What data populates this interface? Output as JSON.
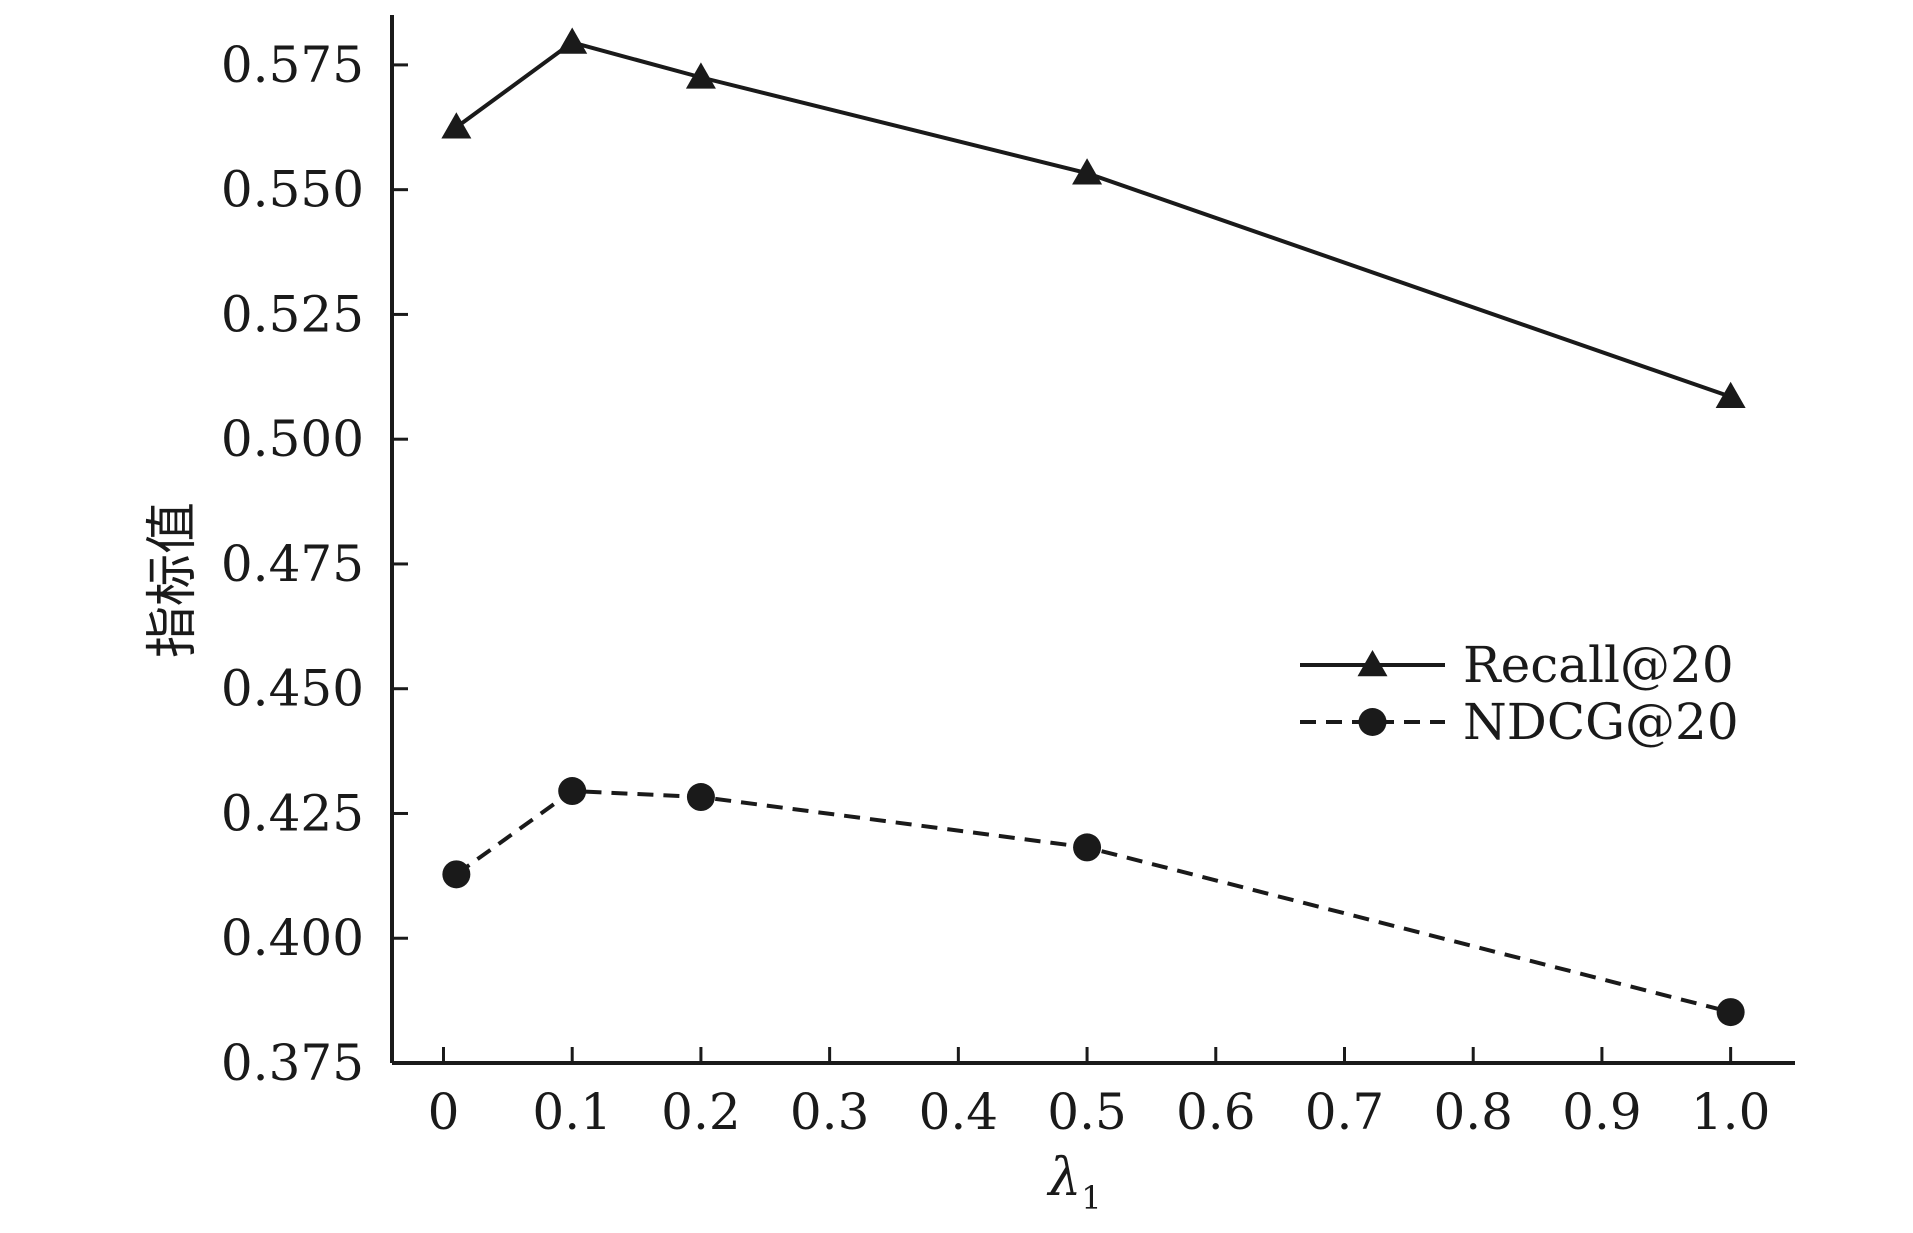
{
  "chart_data": {
    "type": "line",
    "title": "",
    "xlabel": "λ",
    "xlabel_subscript": "1",
    "ylabel": "指标值",
    "xlim": [
      -0.04,
      1.05
    ],
    "ylim": [
      0.375,
      0.585
    ],
    "x_ticks": [
      0,
      0.1,
      0.2,
      0.3,
      0.4,
      0.5,
      0.6,
      0.7,
      0.8,
      0.9,
      1.0
    ],
    "x_tick_labels": [
      "0",
      "0.1",
      "0.2",
      "0.3",
      "0.4",
      "0.5",
      "0.6",
      "0.7",
      "0.8",
      "0.9",
      "1.0"
    ],
    "y_ticks": [
      0.375,
      0.4,
      0.425,
      0.45,
      0.475,
      0.5,
      0.525,
      0.55,
      0.575
    ],
    "y_tick_labels": [
      "0.375",
      "0.400",
      "0.425",
      "0.450",
      "0.475",
      "0.500",
      "0.525",
      "0.550",
      "0.575"
    ],
    "grid": false,
    "legend_position": "center-right",
    "series": [
      {
        "name": "Recall@20",
        "style": "solid",
        "marker": "triangle",
        "color": "#1a1a1a",
        "x": [
          0.01,
          0.1,
          0.2,
          0.5,
          1.0
        ],
        "values": [
          0.5625,
          0.5795,
          0.5725,
          0.5533,
          0.5085
        ]
      },
      {
        "name": "NDCG@20",
        "style": "dashed",
        "marker": "circle",
        "color": "#1a1a1a",
        "x": [
          0.01,
          0.1,
          0.2,
          0.5,
          1.0
        ],
        "values": [
          0.4128,
          0.4295,
          0.4283,
          0.4182,
          0.3852
        ]
      }
    ]
  }
}
